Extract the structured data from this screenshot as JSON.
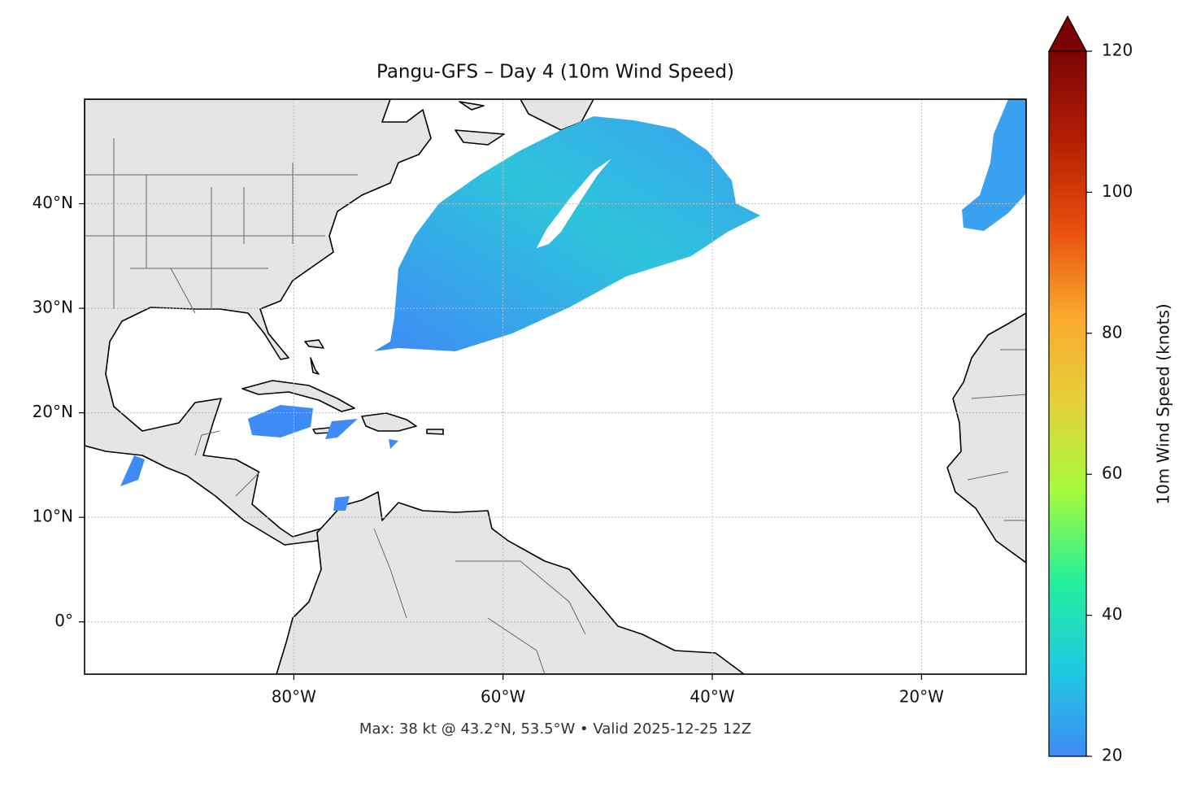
{
  "chart_data": {
    "type": "map",
    "title": "Pangu-GFS – Day 4 (10m Wind Speed)",
    "footnote": "Max: 38 kt @ 43.2°N, 53.5°W • Valid 2025-12-25 12Z",
    "xlim": [
      -100,
      -10
    ],
    "ylim": [
      -5,
      50
    ],
    "xticks": [
      {
        "value": -80,
        "label": "80°W"
      },
      {
        "value": -60,
        "label": "60°W"
      },
      {
        "value": -40,
        "label": "40°W"
      },
      {
        "value": -20,
        "label": "20°W"
      }
    ],
    "yticks": [
      {
        "value": 0,
        "label": "0°"
      },
      {
        "value": 10,
        "label": "10°N"
      },
      {
        "value": 20,
        "label": "20°N"
      },
      {
        "value": 30,
        "label": "30°N"
      },
      {
        "value": 40,
        "label": "40°N"
      }
    ],
    "grid": true,
    "colorbar": {
      "label": "10m Wind Speed (knots)",
      "lim": [
        20,
        120
      ],
      "ticks": [
        20,
        40,
        60,
        80,
        100,
        120
      ],
      "colors": [
        "#3e8bf6",
        "#1fcbe0",
        "#25ee9a",
        "#a4fc3c",
        "#e3d13a",
        "#fba82e",
        "#e84d0c",
        "#b31e03",
        "#7a0403"
      ]
    }
  }
}
